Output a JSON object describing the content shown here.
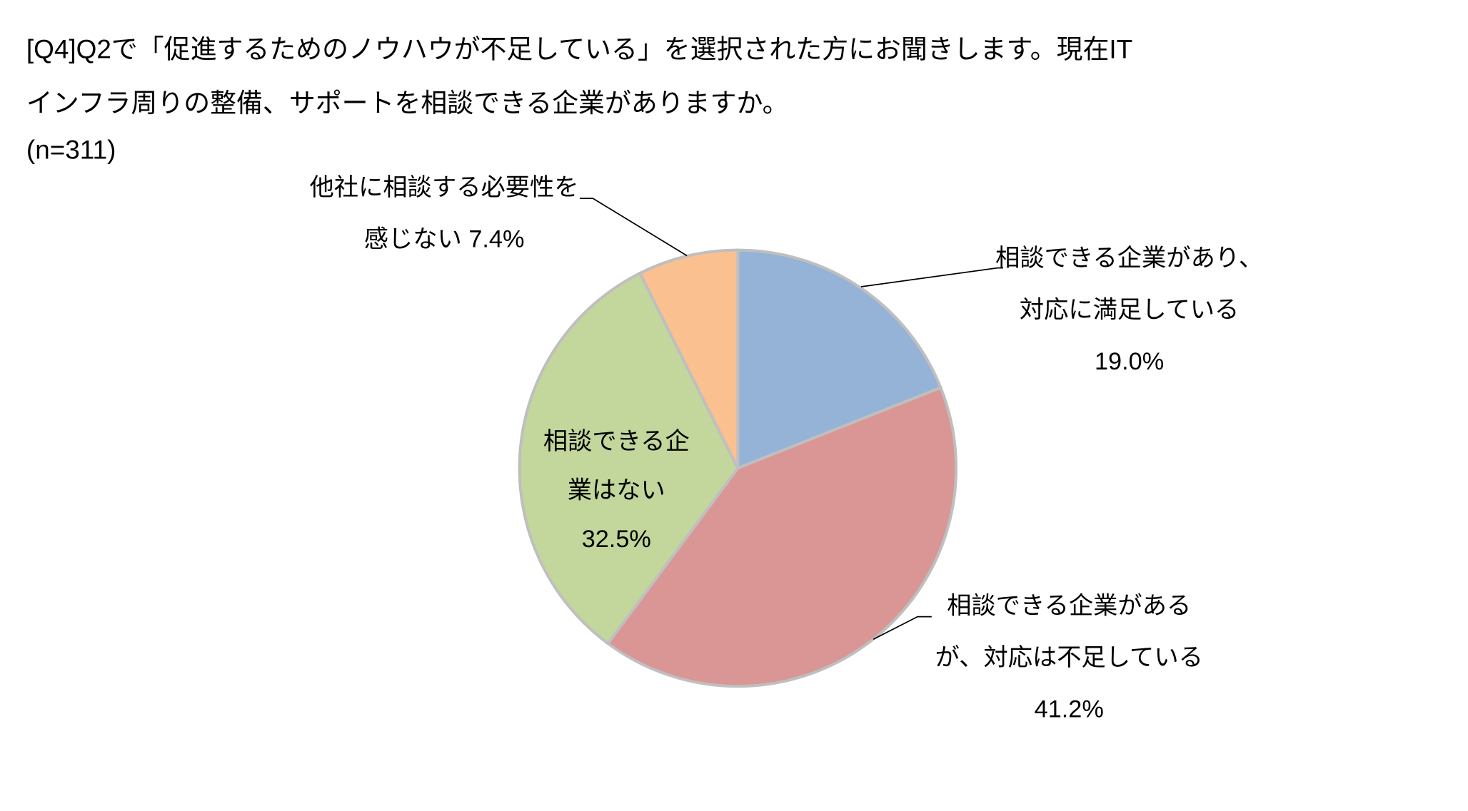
{
  "chart_data": {
    "type": "pie",
    "title": "[Q4]Q2で「促進するためのノウハウが不足している」を選択された方にお聞きします。現在ITインフラ周りの整備、サポートを相談できる企業がありますか。",
    "subtitle": "(n=311)",
    "categories": [
      "相談できる企業があり、対応に満足している",
      "相談できる企業があるが、対応は不足している",
      "相談できる企業はない",
      "他社に相談する必要性を感じない"
    ],
    "values": [
      19.0,
      41.2,
      32.5,
      7.4
    ],
    "value_labels": [
      "19.0%",
      "41.2%",
      "32.5%",
      "7.4%"
    ],
    "colors": [
      "#95b3d7",
      "#d99694",
      "#c3d69b",
      "#fac090"
    ]
  }
}
